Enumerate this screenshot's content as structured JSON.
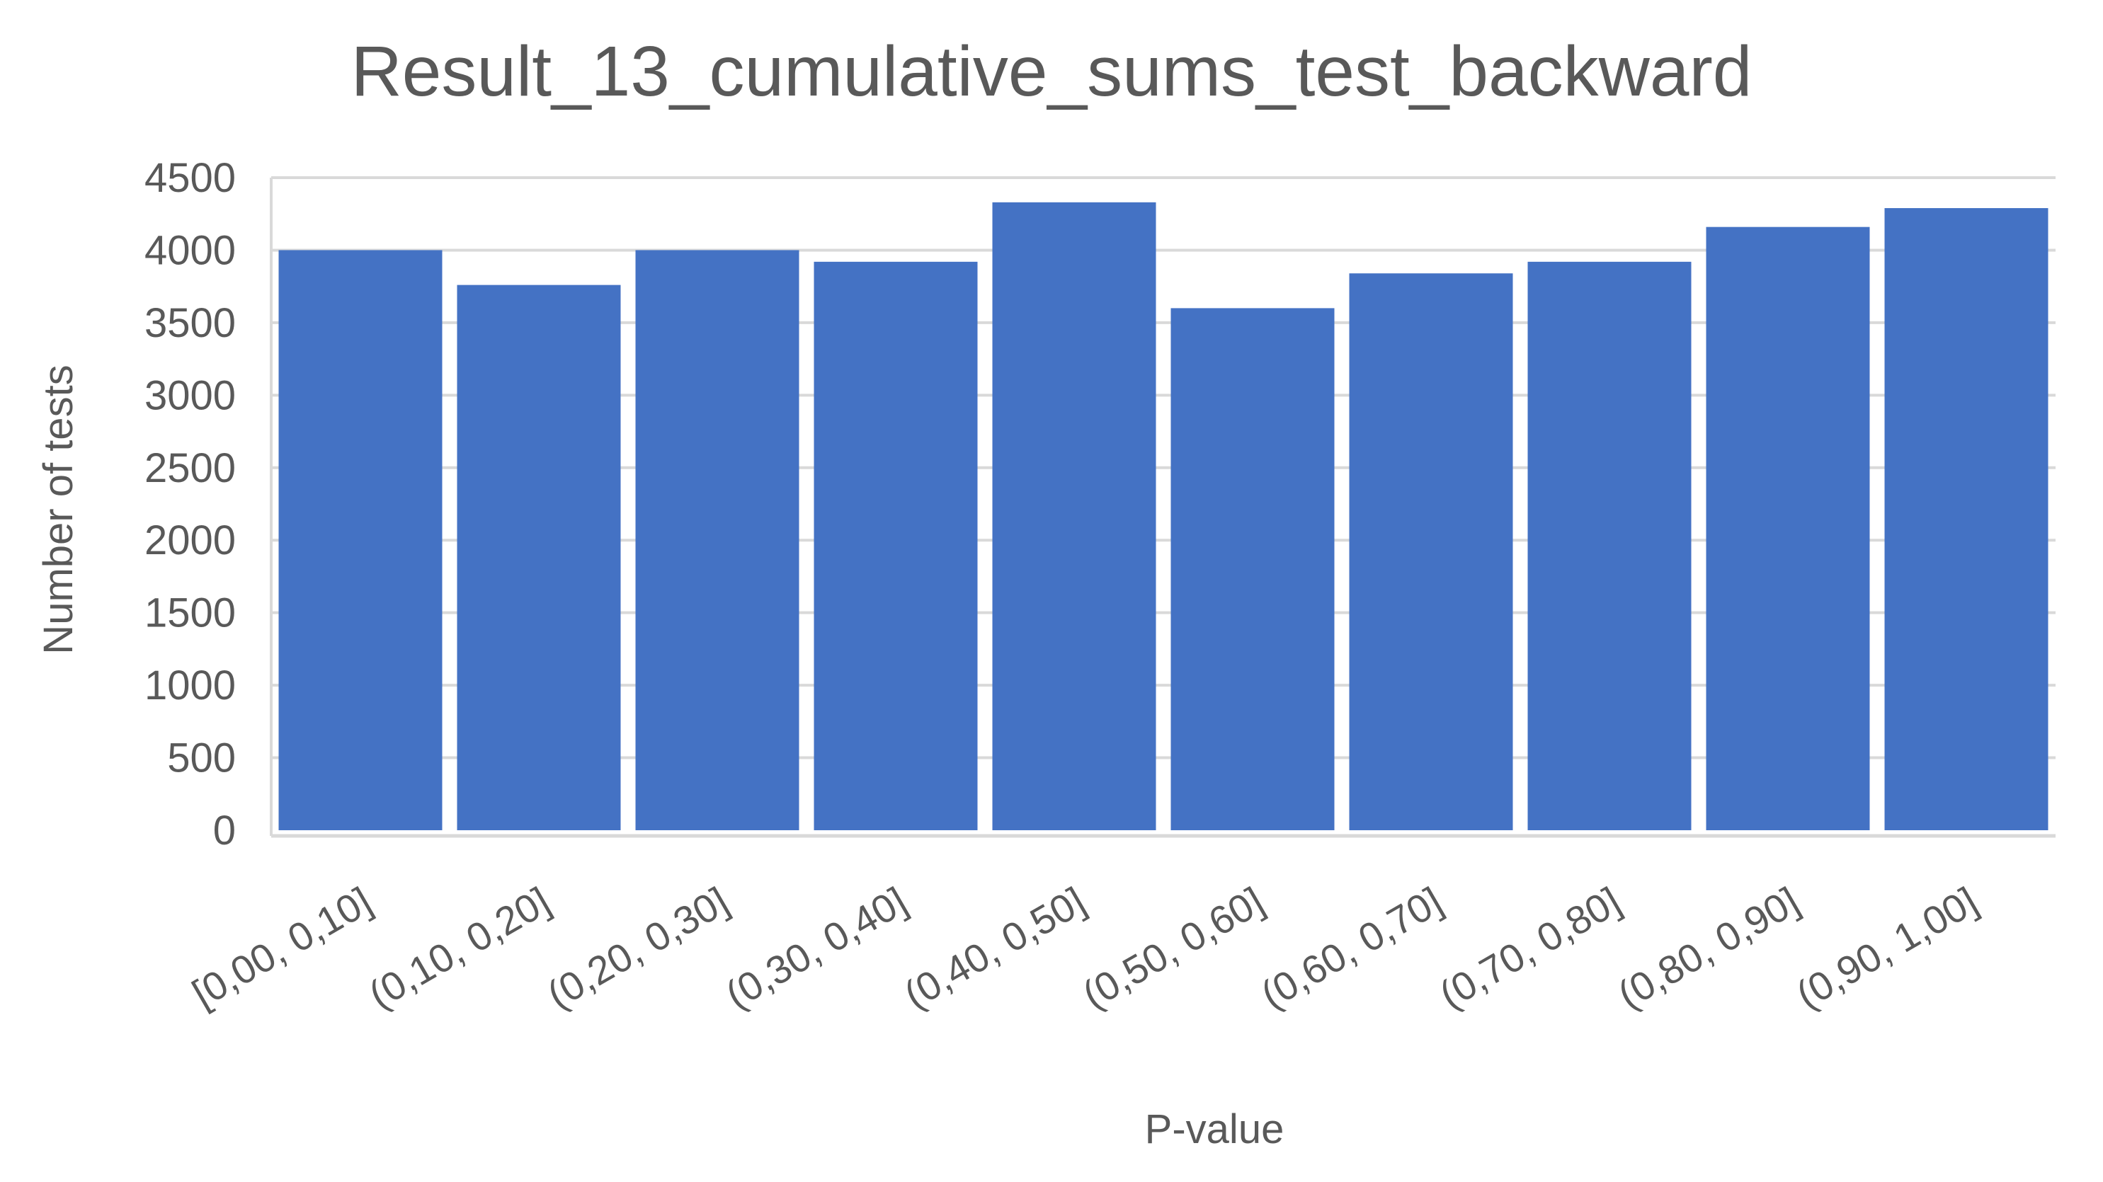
{
  "chart_data": {
    "type": "bar",
    "title": "Result_13_cumulative_sums_test_backward",
    "xlabel": "P-value",
    "ylabel": "Number of tests",
    "categories": [
      "[0,00, 0,10]",
      "(0,10, 0,20]",
      "(0,20, 0,30]",
      "(0,30, 0,40]",
      "(0,40, 0,50]",
      "(0,50, 0,60]",
      "(0,60, 0,70]",
      "(0,70, 0,80]",
      "(0,80, 0,90]",
      "(0,90, 1,00]"
    ],
    "values": [
      4000,
      3760,
      4000,
      3920,
      4330,
      3600,
      3840,
      3920,
      4160,
      4290
    ],
    "ylim": [
      0,
      4500
    ],
    "yticks": [
      0,
      500,
      1000,
      1500,
      2000,
      2500,
      3000,
      3500,
      4000,
      4500
    ],
    "grid": true,
    "bar_color": "#4472C4",
    "grid_color": "#D9D9D9",
    "text_color": "#595959"
  }
}
